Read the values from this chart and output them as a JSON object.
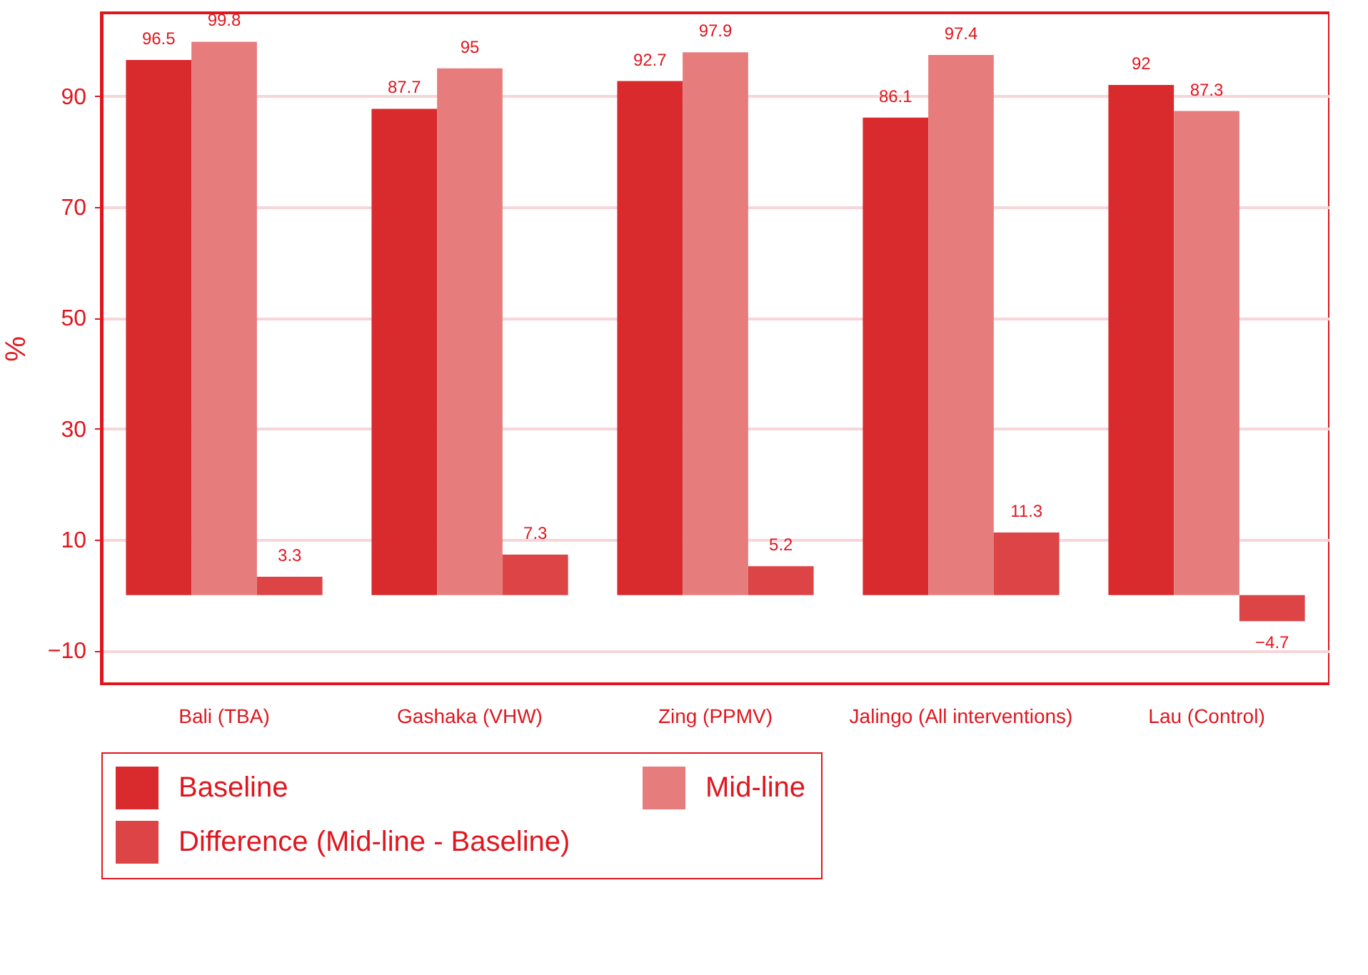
{
  "chart_data": {
    "type": "bar",
    "ylabel": "%",
    "categories": [
      "Bali (TBA)",
      "Gashaka (VHW)",
      "Zing (PPMV)",
      "Jalingo (All interventions)",
      "Lau (Control)"
    ],
    "series": [
      {
        "name": "Baseline",
        "color": "#d92b2e",
        "values": [
          96.5,
          87.7,
          92.7,
          86.1,
          92
        ]
      },
      {
        "name": "Mid-line",
        "color": "#e67c7c",
        "values": [
          99.8,
          95,
          97.9,
          97.4,
          87.3
        ]
      },
      {
        "name": "Difference (Mid-line - Baseline)",
        "color": "#dc4446",
        "values": [
          3.3,
          7.3,
          5.2,
          11.3,
          -4.7
        ]
      }
    ],
    "ylim": [
      -16,
      105
    ],
    "yticks": [
      -10,
      10,
      30,
      50,
      70,
      90
    ],
    "grid": "y",
    "legend": "bottom",
    "data_labels": true
  }
}
